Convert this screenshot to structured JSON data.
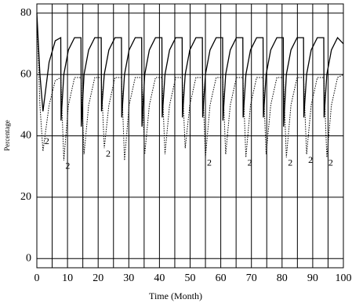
{
  "chart_data": {
    "type": "line",
    "xlabel": "Time (Month)",
    "ylabel": "Percentage",
    "x": [
      0,
      1,
      2,
      4,
      6,
      7.8,
      7.9,
      8.8,
      10.3,
      12.3,
      14.4,
      14.5,
      15.4,
      16.9,
      18.9,
      21,
      21.1,
      22,
      23.5,
      25.5,
      27.6,
      27.7,
      28.6,
      30.1,
      32.1,
      34.2,
      34.3,
      35.2,
      36.7,
      38.7,
      40.8,
      40.9,
      41.8,
      43.3,
      45.3,
      47.4,
      47.5,
      48.4,
      49.9,
      51.9,
      54,
      54.1,
      55,
      56.5,
      58.5,
      60.6,
      60.7,
      61.6,
      63.1,
      65.1,
      67.2,
      67.3,
      68.2,
      69.7,
      71.7,
      73.8,
      73.9,
      74.8,
      76.3,
      78.3,
      80.4,
      80.5,
      81.4,
      82.9,
      84.9,
      87,
      87.1,
      88,
      89.5,
      91.5,
      93.6,
      93.7,
      94.6,
      96.1,
      98.1,
      100
    ],
    "series": [
      {
        "color": "#000000",
        "dash": "solid",
        "values": [
          80,
          60,
          48,
          64,
          71,
          72,
          45,
          60,
          68,
          72,
          72,
          43,
          60,
          68,
          72,
          72,
          48,
          60,
          68,
          72,
          72,
          46,
          60,
          68,
          72,
          72,
          43,
          60,
          68,
          72,
          72,
          46,
          60,
          68,
          72,
          72,
          46,
          60,
          68,
          72,
          72,
          46,
          60,
          68,
          72,
          72,
          45,
          60,
          68,
          72,
          72,
          46,
          60,
          68,
          72,
          72,
          46,
          60,
          68,
          72,
          72,
          43,
          60,
          68,
          72,
          72,
          46,
          60,
          68,
          72,
          72,
          46,
          60,
          68,
          72,
          70
        ]
      },
      {
        "name": "2",
        "color": "#000000",
        "dash": "dotted",
        "values": [
          80,
          50,
          35,
          50,
          58,
          59,
          57,
          32,
          50,
          59,
          59,
          57,
          34,
          50,
          59,
          59,
          57,
          36,
          50,
          59,
          59,
          57,
          32,
          50,
          59,
          59,
          57,
          34,
          50,
          59,
          59,
          57,
          34,
          50,
          59,
          59,
          57,
          36,
          50,
          59,
          59,
          57,
          33,
          50,
          59,
          59,
          57,
          34,
          50,
          59,
          59,
          57,
          33,
          50,
          59,
          59,
          57,
          34,
          50,
          59,
          59,
          57,
          33,
          50,
          59,
          59,
          57,
          34,
          50,
          59,
          59,
          57,
          33,
          50,
          59,
          60
        ]
      }
    ],
    "xlim": [
      0,
      100
    ],
    "ylim": [
      -3,
      83
    ],
    "xticks": [
      0,
      10,
      20,
      30,
      40,
      50,
      60,
      70,
      80,
      90,
      100
    ],
    "xgrid": [
      5,
      15,
      25,
      35,
      45,
      55,
      65,
      75,
      85,
      95
    ],
    "yticks": [
      0,
      20,
      40,
      60,
      80
    ],
    "grid": true
  }
}
